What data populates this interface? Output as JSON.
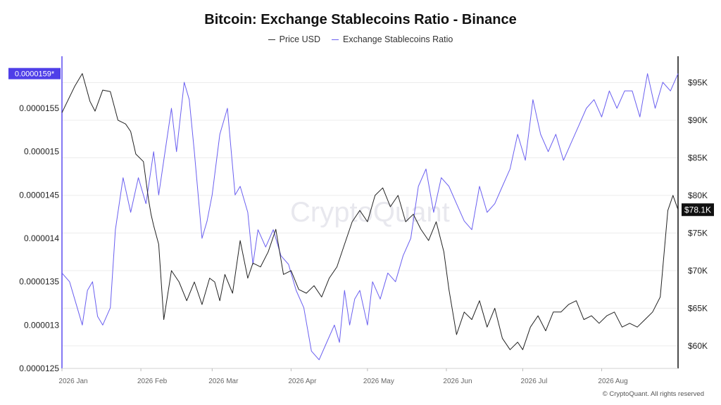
{
  "header": {
    "title": "Bitcoin: Exchange Stablecoins Ratio - Binance"
  },
  "watermark": "CryptoQuant",
  "credit": "© CryptoQuant. All rights reserved",
  "chart_data": {
    "type": "line",
    "title": "Bitcoin: Exchange Stablecoins Ratio - Binance",
    "legend_position": "top-center",
    "x_tick_labels": [
      "2026 Jan",
      "2026 Feb",
      "2026 Mar",
      "2026 Apr",
      "2026 May",
      "2026 Jun",
      "2026 Jul",
      "2026 Aug"
    ],
    "x_range": [
      "2026-01-01",
      "2026-08-31"
    ],
    "left_axis": {
      "series": "Exchange Stablecoins Ratio",
      "range": [
        1.25e-05,
        1.61e-05
      ],
      "tick_values": [
        1.25e-05,
        1.3e-05,
        1.35e-05,
        1.4e-05,
        1.45e-05,
        1.5e-05,
        1.55e-05
      ],
      "tick_labels": [
        "0.0000125",
        "0.000013",
        "0.0000135",
        "0.000014",
        "0.0000145",
        "0.000015",
        "0.0000155"
      ],
      "current_value_label": "0.0000159*"
    },
    "right_axis": {
      "series": "Price USD",
      "range": [
        57000,
        98500
      ],
      "tick_values": [
        60000,
        65000,
        70000,
        75000,
        80000,
        85000,
        90000,
        95000
      ],
      "tick_labels": [
        "$60K",
        "$65K",
        "$70K",
        "$75K",
        "$80K",
        "$85K",
        "$90K",
        "$95K"
      ],
      "current_value_label": "$78.1K"
    },
    "gridlines": "horizontal",
    "colors": {
      "price": "#222222",
      "ratio": "#6a5ff0",
      "left_axis_line": "#5b4bf0",
      "left_badge": "#4f3fe8",
      "right_badge": "#111111"
    },
    "series": [
      {
        "name": "Price USD",
        "axis": "right",
        "x": [
          "2026-01-01",
          "2026-01-06",
          "2026-01-09",
          "2026-01-12",
          "2026-01-14",
          "2026-01-17",
          "2026-01-20",
          "2026-01-23",
          "2026-01-26",
          "2026-01-28",
          "2026-01-30",
          "2026-02-02",
          "2026-02-04",
          "2026-02-05",
          "2026-02-06",
          "2026-02-08",
          "2026-02-10",
          "2026-02-13",
          "2026-02-16",
          "2026-02-19",
          "2026-02-22",
          "2026-02-25",
          "2026-02-28",
          "2026-03-02",
          "2026-03-04",
          "2026-03-06",
          "2026-03-09",
          "2026-03-12",
          "2026-03-15",
          "2026-03-17",
          "2026-03-20",
          "2026-03-23",
          "2026-03-26",
          "2026-03-29",
          "2026-04-01",
          "2026-04-04",
          "2026-04-07",
          "2026-04-10",
          "2026-04-13",
          "2026-04-16",
          "2026-04-19",
          "2026-04-22",
          "2026-04-25",
          "2026-04-28",
          "2026-05-01",
          "2026-05-04",
          "2026-05-07",
          "2026-05-10",
          "2026-05-13",
          "2026-05-16",
          "2026-05-19",
          "2026-05-22",
          "2026-05-25",
          "2026-05-28",
          "2026-05-31",
          "2026-06-02",
          "2026-06-05",
          "2026-06-08",
          "2026-06-11",
          "2026-06-14",
          "2026-06-17",
          "2026-06-20",
          "2026-06-23",
          "2026-06-26",
          "2026-06-29",
          "2026-07-01",
          "2026-07-04",
          "2026-07-07",
          "2026-07-10",
          "2026-07-13",
          "2026-07-16",
          "2026-07-19",
          "2026-07-22",
          "2026-07-25",
          "2026-07-28",
          "2026-07-31",
          "2026-08-03",
          "2026-08-06",
          "2026-08-09",
          "2026-08-12",
          "2026-08-15",
          "2026-08-18",
          "2026-08-21",
          "2026-08-24",
          "2026-08-27",
          "2026-08-29",
          "2026-08-31"
        ],
        "values": [
          91000,
          94500,
          96200,
          92500,
          91200,
          94000,
          93800,
          90000,
          89500,
          88500,
          85500,
          84500,
          79500,
          77500,
          76000,
          73500,
          63500,
          70000,
          68500,
          66000,
          68500,
          65500,
          69000,
          68500,
          66000,
          69500,
          67000,
          74000,
          69000,
          71000,
          70500,
          72500,
          75500,
          69500,
          70000,
          67500,
          67000,
          68000,
          66500,
          69000,
          70500,
          73500,
          76500,
          78000,
          76500,
          80000,
          81000,
          78500,
          80000,
          76500,
          77500,
          75500,
          74000,
          76500,
          72500,
          67500,
          61500,
          64500,
          63500,
          66000,
          62500,
          65000,
          61000,
          59500,
          60500,
          59500,
          62500,
          64000,
          62000,
          64500,
          64500,
          65500,
          66000,
          63500,
          64000,
          63000,
          64000,
          64500,
          62500,
          63000,
          62500,
          63500,
          64500,
          66500,
          78000,
          80000,
          78100
        ]
      },
      {
        "name": "Exchange Stablecoins Ratio",
        "axis": "left",
        "x": [
          "2026-01-01",
          "2026-01-04",
          "2026-01-07",
          "2026-01-09",
          "2026-01-11",
          "2026-01-13",
          "2026-01-15",
          "2026-01-17",
          "2026-01-20",
          "2026-01-22",
          "2026-01-25",
          "2026-01-28",
          "2026-01-31",
          "2026-02-03",
          "2026-02-06",
          "2026-02-08",
          "2026-02-10",
          "2026-02-13",
          "2026-02-15",
          "2026-02-18",
          "2026-02-20",
          "2026-02-22",
          "2026-02-25",
          "2026-02-27",
          "2026-03-01",
          "2026-03-04",
          "2026-03-07",
          "2026-03-10",
          "2026-03-12",
          "2026-03-15",
          "2026-03-17",
          "2026-03-19",
          "2026-03-22",
          "2026-03-25",
          "2026-03-28",
          "2026-03-31",
          "2026-04-03",
          "2026-04-06",
          "2026-04-09",
          "2026-04-12",
          "2026-04-15",
          "2026-04-18",
          "2026-04-20",
          "2026-04-22",
          "2026-04-24",
          "2026-04-26",
          "2026-04-28",
          "2026-05-01",
          "2026-05-03",
          "2026-05-06",
          "2026-05-09",
          "2026-05-12",
          "2026-05-15",
          "2026-05-18",
          "2026-05-21",
          "2026-05-24",
          "2026-05-27",
          "2026-05-30",
          "2026-06-02",
          "2026-06-05",
          "2026-06-08",
          "2026-06-11",
          "2026-06-14",
          "2026-06-17",
          "2026-06-20",
          "2026-06-23",
          "2026-06-26",
          "2026-06-29",
          "2026-07-02",
          "2026-07-05",
          "2026-07-08",
          "2026-07-11",
          "2026-07-14",
          "2026-07-17",
          "2026-07-20",
          "2026-07-23",
          "2026-07-26",
          "2026-07-29",
          "2026-08-01",
          "2026-08-04",
          "2026-08-07",
          "2026-08-10",
          "2026-08-13",
          "2026-08-16",
          "2026-08-19",
          "2026-08-22",
          "2026-08-25",
          "2026-08-28",
          "2026-08-31"
        ],
        "values": [
          1.36e-05,
          1.35e-05,
          1.32e-05,
          1.3e-05,
          1.34e-05,
          1.35e-05,
          1.31e-05,
          1.3e-05,
          1.32e-05,
          1.41e-05,
          1.47e-05,
          1.43e-05,
          1.47e-05,
          1.44e-05,
          1.5e-05,
          1.45e-05,
          1.49e-05,
          1.55e-05,
          1.5e-05,
          1.58e-05,
          1.56e-05,
          1.5e-05,
          1.4e-05,
          1.42e-05,
          1.45e-05,
          1.52e-05,
          1.55e-05,
          1.45e-05,
          1.46e-05,
          1.43e-05,
          1.37e-05,
          1.41e-05,
          1.39e-05,
          1.41e-05,
          1.38e-05,
          1.37e-05,
          1.34e-05,
          1.32e-05,
          1.27e-05,
          1.26e-05,
          1.28e-05,
          1.3e-05,
          1.28e-05,
          1.34e-05,
          1.3e-05,
          1.33e-05,
          1.34e-05,
          1.3e-05,
          1.35e-05,
          1.33e-05,
          1.36e-05,
          1.35e-05,
          1.38e-05,
          1.4e-05,
          1.46e-05,
          1.48e-05,
          1.43e-05,
          1.47e-05,
          1.46e-05,
          1.44e-05,
          1.42e-05,
          1.41e-05,
          1.46e-05,
          1.43e-05,
          1.44e-05,
          1.46e-05,
          1.48e-05,
          1.52e-05,
          1.49e-05,
          1.56e-05,
          1.52e-05,
          1.5e-05,
          1.52e-05,
          1.49e-05,
          1.51e-05,
          1.53e-05,
          1.55e-05,
          1.56e-05,
          1.54e-05,
          1.57e-05,
          1.55e-05,
          1.57e-05,
          1.57e-05,
          1.54e-05,
          1.59e-05,
          1.55e-05,
          1.58e-05,
          1.57e-05,
          1.59e-05
        ]
      }
    ]
  }
}
